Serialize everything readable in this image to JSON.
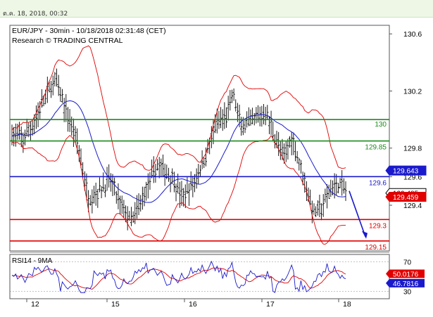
{
  "header": {
    "timestamp": "ต.ค. 18, 2018, 00:32"
  },
  "chart_data": [
    {
      "type": "candlestick",
      "title": "EUR/JPY - 30min - 10/18/2018 02:31:48 (CET)",
      "subtitle": "Research © TRADING CENTRAL",
      "x_tick_labels": [
        "12",
        "15",
        "16",
        "17",
        "18"
      ],
      "y_ticks": [
        129.4,
        129.6,
        129.8,
        130.2,
        130.6
      ],
      "y_tick_labels": [
        "129.4",
        "129.6",
        "129.8",
        "130.2",
        "130.6"
      ],
      "ylim": [
        129.08,
        130.66
      ],
      "price_overlays": [
        "bollinger-bands",
        "moving-average"
      ],
      "levels": [
        {
          "value": 130.0,
          "label": "130",
          "color": "#1b8a1b"
        },
        {
          "value": 129.85,
          "label": "129.85",
          "color": "#1b8a1b"
        },
        {
          "value": 129.6,
          "label": "129.6",
          "color": "#1a1acc"
        },
        {
          "value": 129.3,
          "label": "129.3",
          "color": "#e00000"
        },
        {
          "value": 129.15,
          "label": "129.15",
          "color": "#e00000"
        }
      ],
      "price_tags": [
        {
          "value": 129.643,
          "label": "129.643",
          "color": "#1a1acc"
        },
        {
          "value": 129.485,
          "label": "129.485",
          "color": "#000000"
        },
        {
          "value": 129.459,
          "label": "129.459",
          "color": "#e00000"
        }
      ],
      "forecast_arrow": {
        "from": 129.5,
        "to": 129.18,
        "color": "#1a1acc"
      }
    },
    {
      "type": "line",
      "title": "RSI14 - 9MA",
      "y_ticks": [
        30,
        70
      ],
      "y_tick_labels": [
        "30",
        "70"
      ],
      "ylim": [
        20,
        80
      ],
      "tags": [
        {
          "value": 50.0176,
          "label": "50.0176",
          "color": "#e00000"
        },
        {
          "value": 46.7816,
          "label": "46.7816",
          "color": "#1a1acc"
        }
      ]
    }
  ],
  "colors": {
    "price_bars": "#000000",
    "moving_average": "#1a1acc",
    "bands": "#e00000",
    "rsi": "#1a1acc",
    "rsi_ma": "#e00000"
  }
}
